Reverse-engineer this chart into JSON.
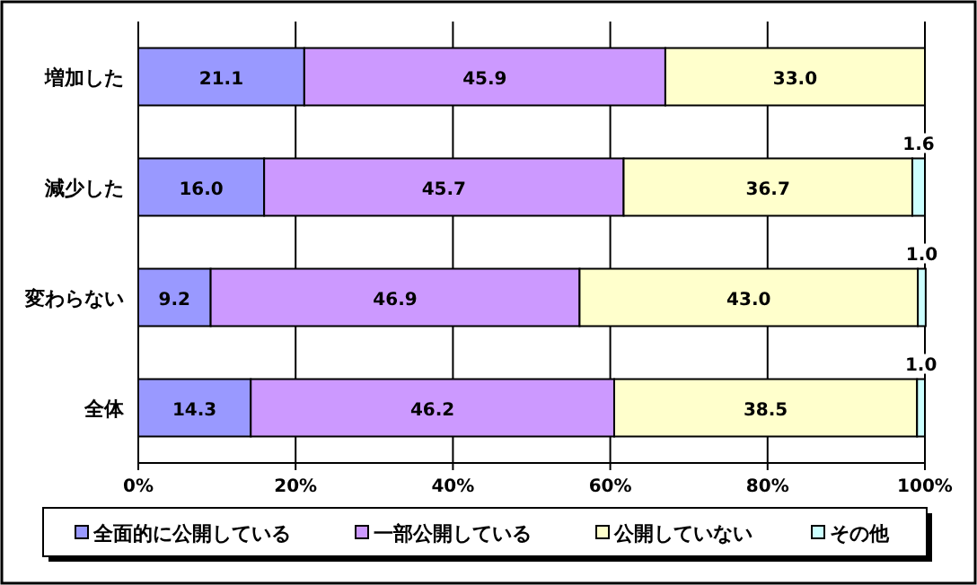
{
  "chart_data": {
    "type": "bar",
    "orientation": "horizontal",
    "stacked": true,
    "grid": "x",
    "legend": "bottom",
    "categories": [
      "増加した",
      "減少した",
      "変わらない",
      "全体"
    ],
    "xlim": [
      0,
      100
    ],
    "xticks": [
      {
        "value": 0,
        "label": "0%"
      },
      {
        "value": 20,
        "label": "20%"
      },
      {
        "value": 40,
        "label": "40%"
      },
      {
        "value": 60,
        "label": "60%"
      },
      {
        "value": 80,
        "label": "80%"
      },
      {
        "value": 100,
        "label": "100%"
      }
    ],
    "series": [
      {
        "name": "全面的に公開している",
        "color": "#9999ff",
        "values": [
          21.1,
          16.0,
          9.2,
          14.3
        ],
        "value_labels": [
          "21.1",
          "16.0",
          "9.2",
          "14.3"
        ]
      },
      {
        "name": "一部公開している",
        "color": "#cc99ff",
        "values": [
          45.9,
          45.7,
          46.9,
          46.2
        ],
        "value_labels": [
          "45.9",
          "45.7",
          "46.9",
          "46.2"
        ]
      },
      {
        "name": "公開していない",
        "color": "#ffffcc",
        "values": [
          33.0,
          36.7,
          43.0,
          38.5
        ],
        "value_labels": [
          "33.0",
          "36.7",
          "43.0",
          "38.5"
        ]
      },
      {
        "name": "その他",
        "color": "#ccffff",
        "values": [
          null,
          1.6,
          1.0,
          1.0
        ],
        "value_labels": [
          null,
          "1.6",
          "1.0",
          "1.0"
        ]
      }
    ]
  }
}
